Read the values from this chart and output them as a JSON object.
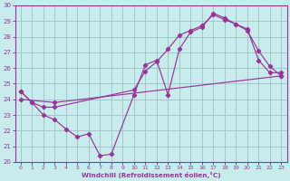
{
  "xlabel": "Windchill (Refroidissement éolien,°C)",
  "bg_color": "#c8ecec",
  "grid_color": "#a0c8c8",
  "line_color": "#993399",
  "xlim": [
    -0.5,
    23.5
  ],
  "ylim": [
    20,
    30
  ],
  "yticks": [
    20,
    21,
    22,
    23,
    24,
    25,
    26,
    27,
    28,
    29,
    30
  ],
  "xticks": [
    0,
    1,
    2,
    3,
    4,
    5,
    6,
    7,
    8,
    9,
    10,
    11,
    12,
    13,
    14,
    15,
    16,
    17,
    18,
    19,
    20,
    21,
    22,
    23
  ],
  "line1_x": [
    0,
    1,
    2,
    3,
    4,
    5,
    6,
    7,
    8,
    10,
    11,
    12,
    13,
    14,
    15,
    16,
    17,
    18,
    19,
    20,
    21,
    22,
    23
  ],
  "line1_y": [
    24.5,
    23.8,
    23.0,
    22.7,
    22.1,
    21.6,
    21.8,
    20.4,
    20.5,
    24.3,
    26.2,
    26.5,
    24.3,
    27.2,
    28.3,
    28.6,
    29.5,
    29.2,
    28.8,
    28.5,
    26.5,
    25.7,
    25.7
  ],
  "line2_x": [
    0,
    1,
    2,
    3,
    10,
    11,
    12,
    13,
    14,
    15,
    16,
    17,
    18,
    19,
    20,
    21,
    22,
    23
  ],
  "line2_y": [
    24.5,
    23.8,
    23.5,
    23.5,
    24.6,
    25.8,
    26.4,
    27.2,
    28.1,
    28.4,
    28.7,
    29.4,
    29.1,
    28.8,
    28.4,
    27.1,
    26.1,
    25.5
  ],
  "line3_x": [
    0,
    3,
    23
  ],
  "line3_y": [
    24.0,
    23.8,
    25.5
  ]
}
